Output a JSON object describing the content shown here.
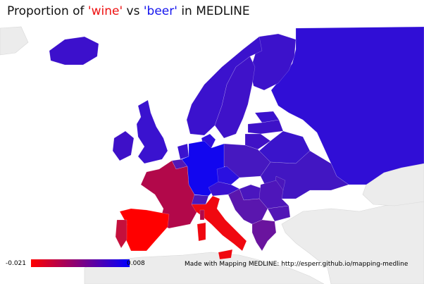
{
  "title": {
    "prefix": "Proportion of ",
    "term_a": "'wine'",
    "middle": " vs ",
    "term_b": "'beer'",
    "suffix": " in MEDLINE",
    "term_a_color": "#ee1111",
    "term_b_color": "#1414ee"
  },
  "legend": {
    "min_label": "-0.021",
    "max_label": "0.008",
    "min_value": -0.021,
    "max_value": 0.008,
    "low_color": "#ff0000",
    "high_color": "#0000ff"
  },
  "credit": "Made with Mapping MEDLINE: http://esperr.github.io/mapping-medline",
  "map": {
    "type": "choropleth",
    "background_land_color": "#ececec",
    "ocean_color": "#ffffff",
    "regions": [
      {
        "id": "iceland",
        "color": "#3c10cc"
      },
      {
        "id": "ireland",
        "color": "#3e10c8"
      },
      {
        "id": "uk",
        "color": "#3a12cf"
      },
      {
        "id": "norway",
        "color": "#3b12cd"
      },
      {
        "id": "sweden",
        "color": "#3f12c9"
      },
      {
        "id": "finland",
        "color": "#3c12cb"
      },
      {
        "id": "russia",
        "color": "#300ed6"
      },
      {
        "id": "estonia",
        "color": "#3a12cd"
      },
      {
        "id": "latvia",
        "color": "#3e12c8"
      },
      {
        "id": "lithuania",
        "color": "#4012c6"
      },
      {
        "id": "belarus",
        "color": "#3a14cb"
      },
      {
        "id": "ukraine",
        "color": "#4216c2"
      },
      {
        "id": "denmark",
        "color": "#3010dc"
      },
      {
        "id": "netherlands",
        "color": "#3a12cf"
      },
      {
        "id": "belgium",
        "color": "#5218b6"
      },
      {
        "id": "germany",
        "color": "#1206ef"
      },
      {
        "id": "poland",
        "color": "#4618c0"
      },
      {
        "id": "czechia",
        "color": "#2a10e0"
      },
      {
        "id": "austria",
        "color": "#3a12d0"
      },
      {
        "id": "switzerland",
        "color": "#4a18bc"
      },
      {
        "id": "france",
        "color": "#b2084a"
      },
      {
        "id": "spain",
        "color": "#ff0000"
      },
      {
        "id": "portugal",
        "color": "#c4103c"
      },
      {
        "id": "italy",
        "color": "#f00810"
      },
      {
        "id": "hungary",
        "color": "#4a16be"
      },
      {
        "id": "romania",
        "color": "#4e16ba"
      },
      {
        "id": "moldova",
        "color": "#4a16bc"
      },
      {
        "id": "balkans",
        "color": "#5a16ae"
      },
      {
        "id": "bulgaria",
        "color": "#5216b6"
      },
      {
        "id": "greece",
        "color": "#6a149e"
      },
      {
        "id": "sardinia",
        "color": "#f00810"
      },
      {
        "id": "corsica",
        "color": "#b2084a"
      }
    ]
  }
}
